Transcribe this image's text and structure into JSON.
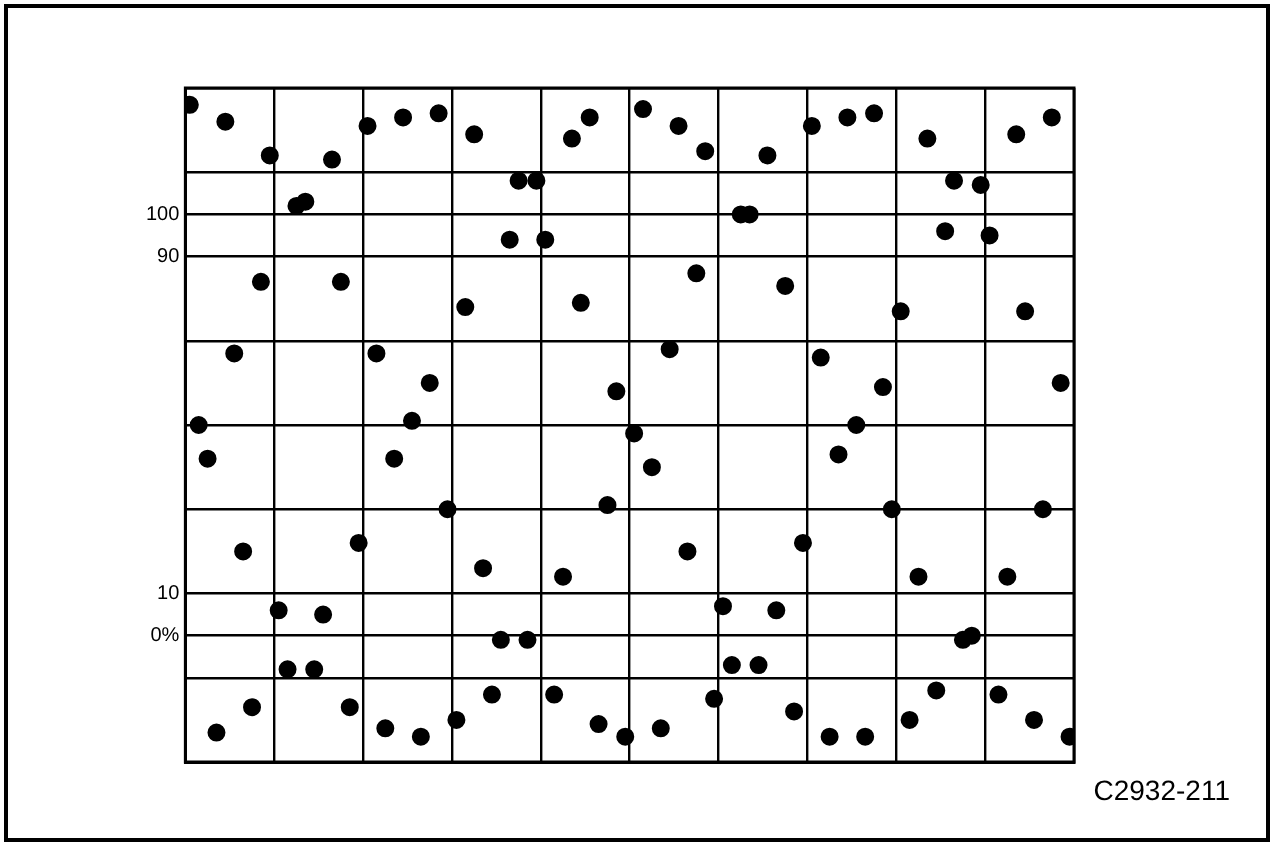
{
  "chart_data": {
    "type": "scatter",
    "color": "#000000",
    "marker": "circle",
    "grid": true,
    "tick_labels": "y",
    "annotations": [
      "C2932-211"
    ],
    "categories": [
      null,
      null,
      null,
      null,
      null,
      null,
      null,
      null,
      null,
      null,
      null,
      null,
      null,
      null,
      null,
      null,
      null,
      null,
      null,
      null,
      null,
      null,
      null,
      null,
      null,
      null,
      null,
      null,
      null,
      null,
      null,
      null,
      null,
      null,
      null,
      null,
      null,
      null,
      null,
      null,
      null,
      null,
      null,
      null,
      null,
      null,
      null,
      null,
      null,
      null,
      null,
      null,
      null,
      null,
      null,
      null,
      null,
      null,
      null,
      null,
      null,
      null,
      null,
      null,
      null,
      null,
      null,
      null,
      null,
      null,
      null,
      null,
      null,
      null,
      null,
      null,
      null,
      null,
      null,
      null,
      null,
      null,
      null,
      null,
      null,
      null,
      null,
      null,
      null,
      null,
      null,
      null,
      null,
      null,
      null,
      null,
      null,
      null,
      null,
      null
    ],
    "ylim": [
      -30,
      130
    ],
    "yticks": [
      {
        "value": -30,
        "label": null
      },
      {
        "value": -10,
        "label": null
      },
      {
        "value": 0,
        "label": "0%"
      },
      10,
      {
        "value": 30,
        "label": null
      },
      {
        "value": 50,
        "label": null
      },
      {
        "value": 70,
        "label": null
      },
      90,
      100,
      {
        "value": 110,
        "label": null
      },
      {
        "value": 130,
        "label": null
      }
    ],
    "values": [
      126,
      50,
      42,
      -23,
      122,
      67,
      20,
      -17,
      84,
      114,
      6,
      -8,
      102,
      103,
      -8,
      5,
      113,
      84,
      -17,
      22,
      121,
      67,
      -22,
      42,
      123,
      51,
      -24,
      60,
      124,
      30,
      -20,
      78,
      119,
      16,
      -14,
      -1,
      94,
      108,
      -1,
      108,
      94,
      -14,
      14,
      118,
      79,
      123,
      -21,
      31,
      58,
      -24,
      48,
      125,
      40,
      -22,
      68,
      121,
      20,
      86,
      115,
      -15,
      7,
      -7,
      100,
      100,
      -7,
      114,
      6,
      83,
      -18,
      22,
      121,
      66,
      -24,
      43,
      123,
      50,
      -24,
      124,
      59,
      30,
      77,
      -20,
      14,
      118,
      -13,
      96,
      108,
      -1,
      0,
      107,
      95,
      -14,
      14,
      119,
      77,
      -20,
      30,
      123,
      60,
      -24
    ]
  }
}
